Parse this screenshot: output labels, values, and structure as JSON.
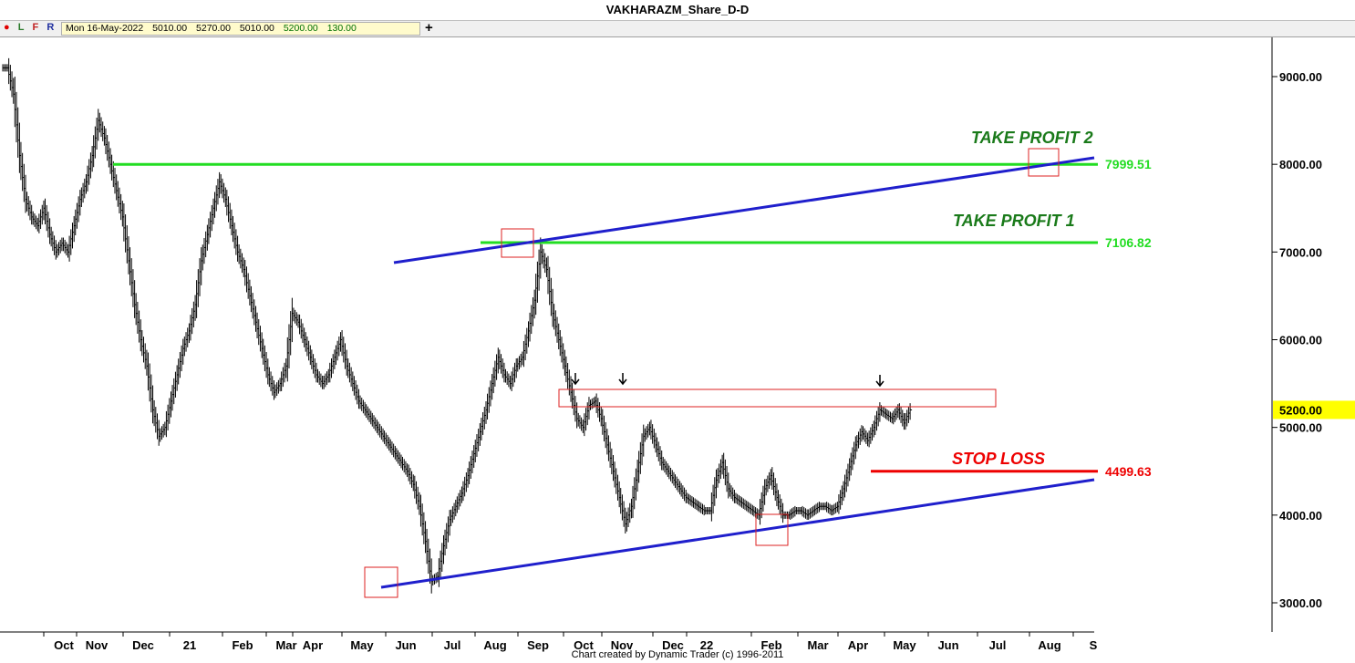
{
  "window": {
    "title": "VAKHARAZM_Share_D-D"
  },
  "toolbar": {
    "letters": [
      "L",
      "F",
      "R"
    ],
    "quote": {
      "date": "Mon 16-May-2022",
      "open": "5010.00",
      "high": "5270.00",
      "low": "5010.00",
      "close": "5200.00",
      "change": "130.00"
    },
    "add_icon": "plus-icon"
  },
  "footer": {
    "credit": "Chart created by Dynamic Trader  (c) 1996-2011"
  },
  "colors": {
    "green_line": "#22dd22",
    "trend_line": "#1f1fcc",
    "stop_line": "#ee0000",
    "box": "#dd2222",
    "current_price_bg": "#ffff00"
  },
  "chart_data": {
    "type": "ohlc-bar",
    "title": "VAKHARAZM_Share_D-D",
    "ylim": [
      2700,
      9400
    ],
    "y_ticks": [
      3000,
      4000,
      5000,
      6000,
      7000,
      8000,
      9000
    ],
    "y_tick_labels": [
      "3000.00",
      "4000.00",
      "5000.00",
      "6000.00",
      "7000.00",
      "8000.00",
      "9000.00"
    ],
    "x_ticks": [
      "Oct",
      "Nov",
      "Dec",
      "21",
      "Feb",
      "Mar",
      "Apr",
      "May",
      "Jun",
      "Jul",
      "Aug",
      "Sep",
      "Oct",
      "Nov",
      "Dec",
      "22",
      "Feb",
      "Mar",
      "Apr",
      "May",
      "Jun",
      "Jul",
      "Aug",
      "S"
    ],
    "current_price": "5200.00",
    "levels": [
      {
        "name": "TAKE PROFIT 2",
        "value": 7999.51,
        "label": "7999.51",
        "color": "#22dd22"
      },
      {
        "name": "TAKE PROFIT 1",
        "value": 7106.82,
        "label": "7106.82",
        "color": "#22dd22"
      },
      {
        "name": "STOP LOSS",
        "value": 4499.63,
        "label": "4499.63",
        "color": "#ee0000"
      }
    ],
    "annotations": {
      "tp2": "TAKE PROFIT 2",
      "tp1": "TAKE PROFIT 1",
      "sl": "STOP LOSS"
    },
    "series": [
      {
        "points": [
          [
            0,
            9100
          ],
          [
            1,
            8800
          ],
          [
            2,
            8100
          ],
          [
            3,
            7600
          ],
          [
            4,
            7400
          ],
          [
            5,
            7300
          ],
          [
            6,
            7500
          ],
          [
            7,
            7200
          ],
          [
            8,
            7000
          ],
          [
            9,
            7100
          ],
          [
            10,
            7000
          ],
          [
            11,
            7300
          ],
          [
            12,
            7600
          ],
          [
            13,
            7800
          ],
          [
            14,
            8100
          ],
          [
            15,
            8500
          ],
          [
            16,
            8300
          ],
          [
            17,
            8000
          ],
          [
            18,
            7700
          ],
          [
            19,
            7400
          ],
          [
            20,
            6900
          ],
          [
            21,
            6400
          ],
          [
            22,
            6000
          ],
          [
            23,
            5700
          ],
          [
            24,
            5200
          ],
          [
            25,
            4900
          ],
          [
            26,
            5000
          ],
          [
            27,
            5300
          ],
          [
            28,
            5600
          ],
          [
            29,
            5900
          ],
          [
            30,
            6100
          ],
          [
            31,
            6400
          ],
          [
            32,
            6900
          ],
          [
            33,
            7200
          ],
          [
            34,
            7500
          ],
          [
            35,
            7800
          ],
          [
            36,
            7600
          ],
          [
            37,
            7300
          ],
          [
            38,
            7000
          ],
          [
            39,
            6800
          ],
          [
            40,
            6500
          ],
          [
            41,
            6200
          ],
          [
            42,
            5900
          ],
          [
            43,
            5600
          ],
          [
            44,
            5400
          ],
          [
            45,
            5500
          ],
          [
            46,
            5700
          ],
          [
            47,
            6300
          ],
          [
            48,
            6200
          ],
          [
            49,
            6000
          ],
          [
            50,
            5800
          ],
          [
            51,
            5600
          ],
          [
            52,
            5500
          ],
          [
            53,
            5600
          ],
          [
            54,
            5800
          ],
          [
            55,
            6000
          ],
          [
            56,
            5700
          ],
          [
            57,
            5500
          ],
          [
            58,
            5300
          ],
          [
            59,
            5200
          ],
          [
            60,
            5100
          ],
          [
            61,
            5000
          ],
          [
            62,
            4900
          ],
          [
            63,
            4800
          ],
          [
            64,
            4700
          ],
          [
            65,
            4600
          ],
          [
            66,
            4500
          ],
          [
            67,
            4350
          ],
          [
            68,
            4100
          ],
          [
            69,
            3700
          ],
          [
            70,
            3250
          ],
          [
            71,
            3300
          ],
          [
            72,
            3650
          ],
          [
            73,
            3950
          ],
          [
            74,
            4100
          ],
          [
            75,
            4250
          ],
          [
            76,
            4450
          ],
          [
            77,
            4700
          ],
          [
            78,
            4950
          ],
          [
            79,
            5200
          ],
          [
            80,
            5500
          ],
          [
            81,
            5800
          ],
          [
            82,
            5600
          ],
          [
            83,
            5500
          ],
          [
            84,
            5700
          ],
          [
            85,
            5800
          ],
          [
            86,
            6100
          ],
          [
            87,
            6450
          ],
          [
            88,
            7000
          ],
          [
            89,
            6800
          ],
          [
            90,
            6300
          ],
          [
            91,
            6000
          ],
          [
            92,
            5700
          ],
          [
            93,
            5400
          ],
          [
            94,
            5100
          ],
          [
            95,
            5000
          ],
          [
            96,
            5250
          ],
          [
            97,
            5300
          ],
          [
            98,
            5100
          ],
          [
            99,
            4800
          ],
          [
            100,
            4500
          ],
          [
            101,
            4200
          ],
          [
            102,
            3900
          ],
          [
            103,
            4100
          ],
          [
            104,
            4500
          ],
          [
            105,
            4900
          ],
          [
            106,
            5000
          ],
          [
            107,
            4800
          ],
          [
            108,
            4600
          ],
          [
            109,
            4500
          ],
          [
            110,
            4400
          ],
          [
            111,
            4300
          ],
          [
            112,
            4200
          ],
          [
            113,
            4150
          ],
          [
            114,
            4100
          ],
          [
            115,
            4050
          ],
          [
            116,
            4050
          ],
          [
            117,
            4400
          ],
          [
            118,
            4600
          ],
          [
            119,
            4300
          ],
          [
            120,
            4200
          ],
          [
            121,
            4150
          ],
          [
            122,
            4100
          ],
          [
            123,
            4050
          ],
          [
            124,
            4000
          ],
          [
            125,
            4300
          ],
          [
            126,
            4450
          ],
          [
            127,
            4200
          ],
          [
            128,
            4000
          ],
          [
            129,
            4000
          ],
          [
            130,
            4050
          ],
          [
            131,
            4050
          ],
          [
            132,
            4000
          ],
          [
            133,
            4050
          ],
          [
            134,
            4100
          ],
          [
            135,
            4100
          ],
          [
            136,
            4050
          ],
          [
            137,
            4100
          ],
          [
            138,
            4300
          ],
          [
            139,
            4550
          ],
          [
            140,
            4800
          ],
          [
            141,
            4950
          ],
          [
            142,
            4850
          ],
          [
            143,
            5000
          ],
          [
            144,
            5200
          ],
          [
            145,
            5150
          ],
          [
            146,
            5100
          ],
          [
            147,
            5200
          ],
          [
            148,
            5050
          ],
          [
            149,
            5200
          ]
        ]
      }
    ]
  }
}
